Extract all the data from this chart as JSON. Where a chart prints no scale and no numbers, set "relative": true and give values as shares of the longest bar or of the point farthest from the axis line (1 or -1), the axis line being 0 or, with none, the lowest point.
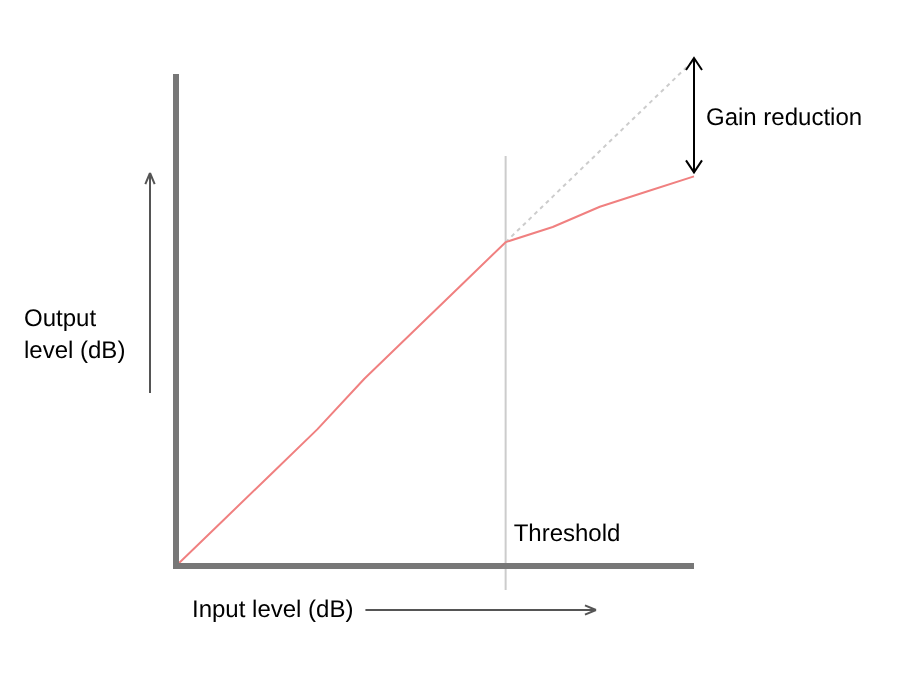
{
  "chart_data": {
    "type": "line",
    "relative": true,
    "xlabel": "Input level (dB)",
    "ylabel": "Output level (dB)",
    "categories": [
      null,
      null,
      null,
      null,
      null,
      null,
      null,
      null,
      null,
      null,
      null,
      null
    ],
    "series": [
      {
        "color": "#f08080",
        "values": [
          0,
          0.09,
          0.18,
          0.27,
          0.37,
          0.46,
          0.55,
          0.64,
          0.67,
          0.71,
          0.74,
          0.77
        ],
        "line_style": "solid"
      },
      {
        "color": "#cccccc",
        "values": [
          null,
          null,
          null,
          null,
          null,
          null,
          null,
          0.64,
          0.73,
          0.82,
          0.91,
          1.0
        ],
        "line_style": "dotted"
      }
    ],
    "annotations": [
      "Threshold",
      "Gain reduction"
    ],
    "marker": "none",
    "legend": false,
    "tick_labels": false
  }
}
